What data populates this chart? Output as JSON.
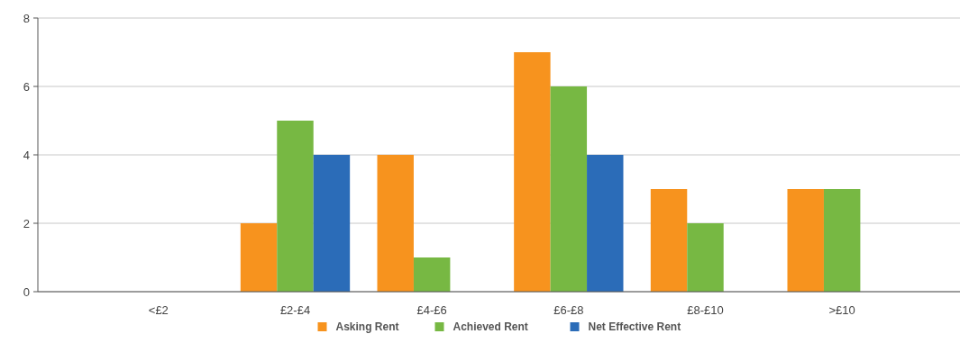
{
  "chart_data": {
    "type": "bar",
    "categories": [
      "<£2",
      "£2-£4",
      "£4-£6",
      "£6-£8",
      "£8-£10",
      ">£10"
    ],
    "series": [
      {
        "name": "Asking Rent",
        "color": "#f7931e",
        "values": [
          0,
          2,
          4,
          7,
          3,
          3
        ]
      },
      {
        "name": "Achieved Rent",
        "color": "#77b843",
        "values": [
          0,
          5,
          1,
          6,
          2,
          3
        ]
      },
      {
        "name": "Net Effective Rent",
        "color": "#2b6cb8",
        "values": [
          0,
          4,
          0,
          4,
          0,
          0
        ]
      }
    ],
    "ylim": [
      0,
      8
    ],
    "yticks": [
      0,
      2,
      4,
      6,
      8
    ],
    "grid": "y",
    "legend": "bottom"
  }
}
